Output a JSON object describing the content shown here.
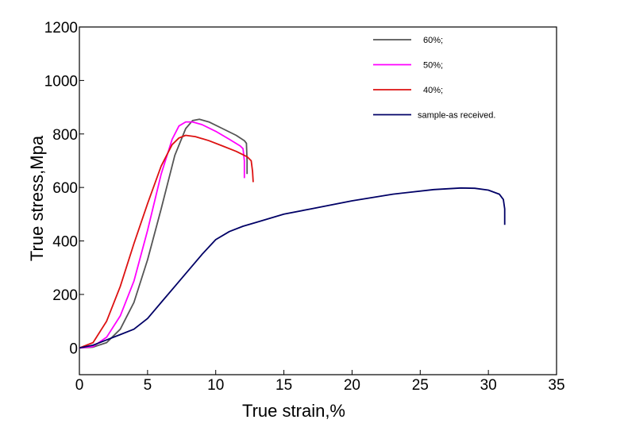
{
  "chart_data": {
    "type": "line",
    "xlabel": "True strain,%",
    "ylabel": "True stress,Mpa",
    "xlim": [
      0,
      35
    ],
    "ylim": [
      -100,
      1200
    ],
    "xticks": [
      0,
      5,
      10,
      15,
      20,
      25,
      30,
      35
    ],
    "yticks": [
      0,
      200,
      400,
      600,
      800,
      1000,
      1200
    ],
    "grid": false,
    "legend_position": "top-right",
    "series": [
      {
        "name": "60%;",
        "color": "#555555",
        "points": [
          [
            0,
            0
          ],
          [
            1,
            3
          ],
          [
            2,
            20
          ],
          [
            3,
            70
          ],
          [
            4,
            170
          ],
          [
            5,
            330
          ],
          [
            6,
            520
          ],
          [
            7,
            720
          ],
          [
            7.8,
            820
          ],
          [
            8.3,
            850
          ],
          [
            8.8,
            855
          ],
          [
            9.5,
            845
          ],
          [
            10.5,
            820
          ],
          [
            11.5,
            795
          ],
          [
            12.1,
            775
          ],
          [
            12.25,
            765
          ],
          [
            12.3,
            700
          ],
          [
            12.3,
            650
          ]
        ]
      },
      {
        "name": "50%;",
        "color": "#ff00ff",
        "points": [
          [
            0,
            0
          ],
          [
            1,
            5
          ],
          [
            2,
            40
          ],
          [
            3,
            120
          ],
          [
            4,
            250
          ],
          [
            5,
            440
          ],
          [
            6,
            650
          ],
          [
            6.8,
            780
          ],
          [
            7.3,
            830
          ],
          [
            7.8,
            845
          ],
          [
            8.3,
            845
          ],
          [
            9,
            835
          ],
          [
            10,
            810
          ],
          [
            11,
            780
          ],
          [
            11.8,
            755
          ],
          [
            12,
            745
          ],
          [
            12.1,
            700
          ],
          [
            12.1,
            635
          ]
        ]
      },
      {
        "name": "40%;",
        "color": "#dd1111",
        "points": [
          [
            0,
            0
          ],
          [
            1,
            20
          ],
          [
            2,
            100
          ],
          [
            3,
            230
          ],
          [
            4,
            390
          ],
          [
            5,
            540
          ],
          [
            6,
            680
          ],
          [
            6.8,
            760
          ],
          [
            7.3,
            785
          ],
          [
            7.8,
            795
          ],
          [
            8.5,
            790
          ],
          [
            9.5,
            775
          ],
          [
            10.5,
            755
          ],
          [
            11.5,
            735
          ],
          [
            12.3,
            715
          ],
          [
            12.6,
            700
          ],
          [
            12.7,
            660
          ],
          [
            12.75,
            620
          ]
        ]
      },
      {
        "name": "sample-as received.",
        "color": "#000066",
        "points": [
          [
            0,
            0
          ],
          [
            1,
            10
          ],
          [
            2,
            30
          ],
          [
            3,
            50
          ],
          [
            4,
            70
          ],
          [
            5,
            110
          ],
          [
            6,
            170
          ],
          [
            7,
            230
          ],
          [
            8,
            290
          ],
          [
            9,
            350
          ],
          [
            10,
            405
          ],
          [
            11,
            435
          ],
          [
            12,
            455
          ],
          [
            13,
            470
          ],
          [
            15,
            500
          ],
          [
            17,
            520
          ],
          [
            20,
            550
          ],
          [
            23,
            575
          ],
          [
            26,
            592
          ],
          [
            28,
            598
          ],
          [
            29,
            597
          ],
          [
            30,
            590
          ],
          [
            30.8,
            575
          ],
          [
            31.1,
            555
          ],
          [
            31.2,
            520
          ],
          [
            31.2,
            460
          ]
        ]
      }
    ]
  }
}
